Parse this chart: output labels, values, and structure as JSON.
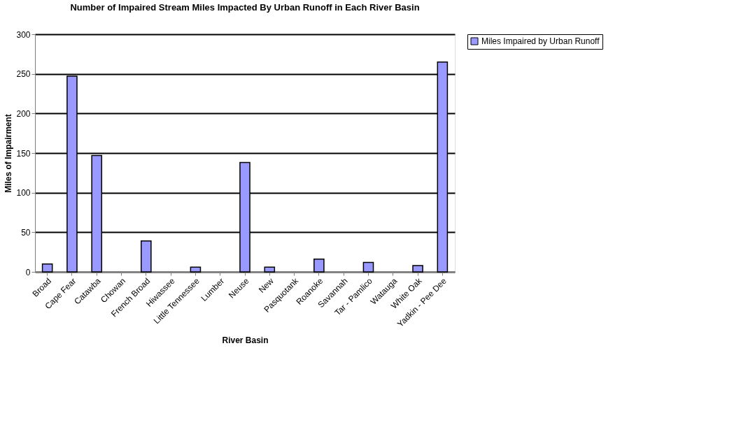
{
  "chart_data": {
    "type": "bar",
    "title": "Number of Impaired Stream Miles Impacted By Urban Runoff in Each River Basin",
    "xlabel": "River Basin",
    "ylabel": "Miles of Impairment",
    "categories": [
      "Broad",
      "Cape Fear",
      "Catawba",
      "Chowan",
      "French Broad",
      "Hiwassee",
      "Little Tennessee",
      "Lumber",
      "Neuse",
      "New",
      "Pasquotank",
      "Roanoke",
      "Savannah",
      "Tar - Pamlico",
      "Watauga",
      "White Oak",
      "Yadkin - Pee Dee"
    ],
    "series": [
      {
        "name": "Miles Impaired by Urban Runoff",
        "color": "#9999ff",
        "values": [
          10,
          247,
          147,
          0,
          39,
          0,
          6,
          0,
          138,
          6,
          0,
          16,
          0,
          12,
          0,
          8,
          265
        ]
      }
    ],
    "ylim": [
      0,
      300
    ],
    "yticks": [
      0,
      50,
      100,
      150,
      200,
      250,
      300
    ],
    "grid": "y",
    "legend": "right"
  }
}
